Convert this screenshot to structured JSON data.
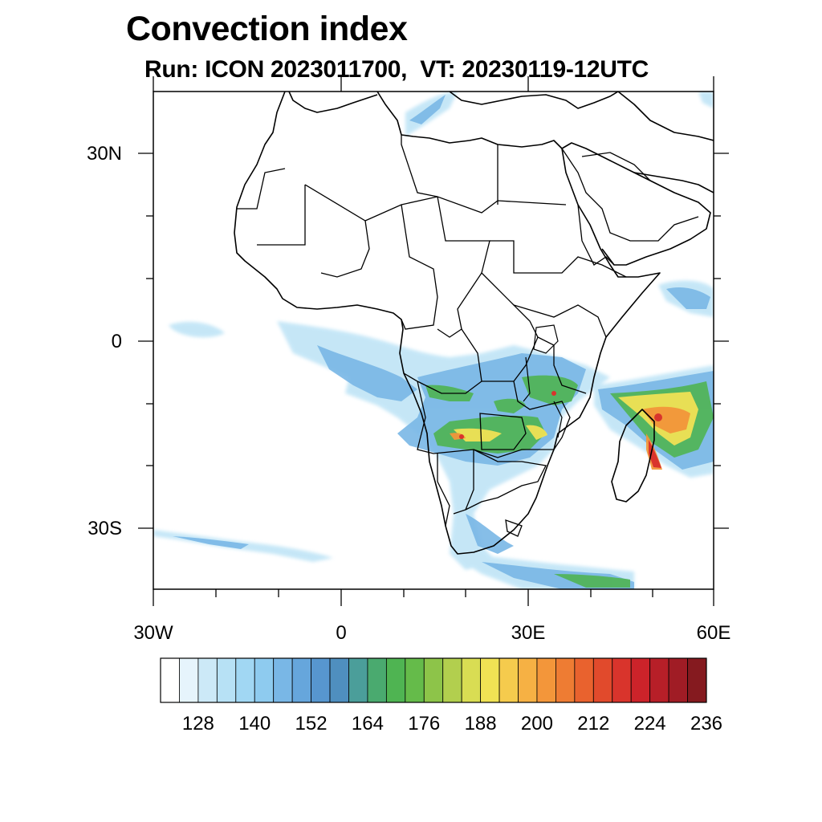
{
  "title": "Convection index",
  "subtitle": "Run: ICON 2023011700,  VT: 20230119-12UTC",
  "map": {
    "region": "Africa",
    "lat_range": [
      -40,
      40
    ],
    "lon_range": [
      -30,
      60
    ],
    "lat_labels": [
      "30N",
      "0",
      "30S"
    ],
    "lon_labels": [
      "30W",
      "0",
      "30E",
      "60E"
    ]
  },
  "colorbar": {
    "levels": [
      "128",
      "140",
      "152",
      "164",
      "176",
      "188",
      "200",
      "212",
      "224",
      "236"
    ],
    "colors": [
      "#ffffff",
      "#e6f4fc",
      "#cce9f7",
      "#b7e1f5",
      "#a1d7f3",
      "#8ecbef",
      "#79b7e6",
      "#66a6dc",
      "#5796cf",
      "#4f8fbf",
      "#4b9e9a",
      "#4aaa6f",
      "#4fb452",
      "#65bb4a",
      "#8dc449",
      "#b2cf4e",
      "#d9dd53",
      "#f0e254",
      "#f5cb4d",
      "#f6b144",
      "#f3963a",
      "#ee7c33",
      "#e9622e",
      "#e14a2c",
      "#d9342c",
      "#cc232a",
      "#b71f28",
      "#a01c25",
      "#851a1f"
    ],
    "color_names": [
      "white",
      "very-light-blue",
      "light-blue",
      "sky-blue",
      "blue",
      "teal",
      "green",
      "yellow-green",
      "yellow",
      "orange",
      "red",
      "dark-red"
    ]
  },
  "colors": {
    "coast": "#000000",
    "frame": "#000000",
    "background": "#ffffff"
  }
}
